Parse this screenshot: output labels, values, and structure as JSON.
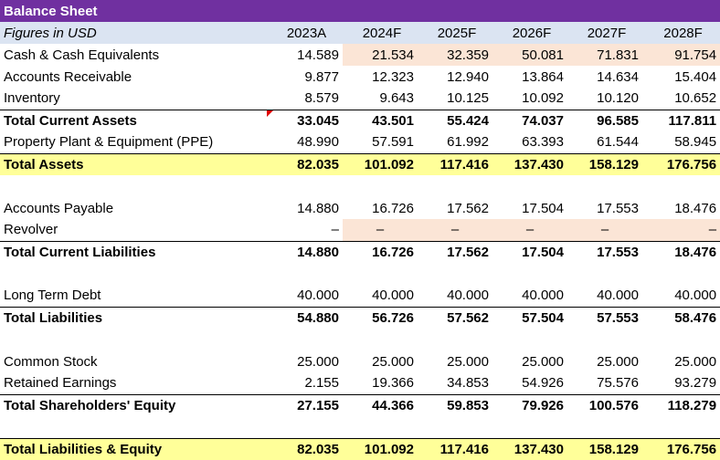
{
  "title": "Balance Sheet",
  "subheader": {
    "label": "Figures in USD",
    "years": [
      "2023A",
      "2024F",
      "2025F",
      "2026F",
      "2027F",
      "2028F"
    ]
  },
  "rows": {
    "cash": {
      "label": "Cash & Cash Equivalents",
      "values": [
        "14.589",
        "21.534",
        "32.359",
        "50.081",
        "71.831",
        "91.754"
      ]
    },
    "receivables": {
      "label": "Accounts Receivable",
      "values": [
        "9.877",
        "12.323",
        "12.940",
        "13.864",
        "14.634",
        "15.404"
      ]
    },
    "inventory": {
      "label": "Inventory",
      "values": [
        "8.579",
        "9.643",
        "10.125",
        "10.092",
        "10.120",
        "10.652"
      ]
    },
    "total_current_assets": {
      "label": "Total Current Assets",
      "values": [
        "33.045",
        "43.501",
        "55.424",
        "74.037",
        "96.585",
        "117.811"
      ]
    },
    "ppe": {
      "label": "Property Plant & Equipment (PPE)",
      "values": [
        "48.990",
        "57.591",
        "61.992",
        "63.393",
        "61.544",
        "58.945"
      ]
    },
    "total_assets": {
      "label": "Total Assets",
      "values": [
        "82.035",
        "101.092",
        "117.416",
        "137.430",
        "158.129",
        "176.756"
      ]
    },
    "accounts_payable": {
      "label": "Accounts Payable",
      "values": [
        "14.880",
        "16.726",
        "17.562",
        "17.504",
        "17.553",
        "18.476"
      ]
    },
    "revolver": {
      "label": "Revolver",
      "values": [
        "–",
        "–",
        "–",
        "–",
        "–",
        "–"
      ]
    },
    "total_current_liabilities": {
      "label": "Total Current Liabilities",
      "values": [
        "14.880",
        "16.726",
        "17.562",
        "17.504",
        "17.553",
        "18.476"
      ]
    },
    "long_term_debt": {
      "label": "Long Term Debt",
      "values": [
        "40.000",
        "40.000",
        "40.000",
        "40.000",
        "40.000",
        "40.000"
      ]
    },
    "total_liabilities": {
      "label": "Total Liabilities",
      "values": [
        "54.880",
        "56.726",
        "57.562",
        "57.504",
        "57.553",
        "58.476"
      ]
    },
    "common_stock": {
      "label": "Common Stock",
      "values": [
        "25.000",
        "25.000",
        "25.000",
        "25.000",
        "25.000",
        "25.000"
      ]
    },
    "retained_earnings": {
      "label": "Retained Earnings",
      "values": [
        "2.155",
        "19.366",
        "34.853",
        "54.926",
        "75.576",
        "93.279"
      ]
    },
    "total_equity": {
      "label": "Total Shareholders' Equity",
      "values": [
        "27.155",
        "44.366",
        "59.853",
        "79.926",
        "100.576",
        "118.279"
      ]
    },
    "total_liabilities_equity": {
      "label": "Total Liabilities & Equity",
      "values": [
        "82.035",
        "101.092",
        "117.416",
        "137.430",
        "158.129",
        "176.756"
      ]
    }
  },
  "colors": {
    "title_bg": "#7030a0",
    "subheader_bg": "#dbe4f2",
    "input_blue": "#1f4fc8",
    "highlight_pink": "#fbe5d6",
    "total_yellow": "#ffff99",
    "comment_marker": "#e00000"
  }
}
